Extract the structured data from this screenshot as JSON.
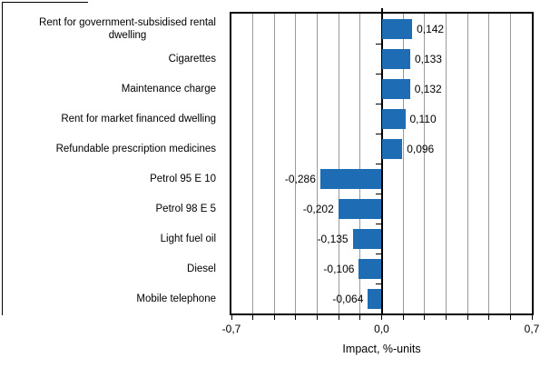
{
  "figure": {
    "axis_title": "Impact, %-units",
    "bar_color": "#1E6CB4",
    "gridline_color": "#9A9A9A",
    "axis_color": "#000000"
  },
  "chart_data": {
    "type": "bar",
    "orientation": "horizontal",
    "title": "",
    "xlabel": "Impact, %-units",
    "ylabel": "",
    "xlim": [
      -0.7,
      0.7
    ],
    "gridline_interval": 0.1,
    "grid": true,
    "legend": false,
    "categories": [
      "Rent for government-subsidised rental\ndwelling",
      "Cigarettes",
      "Maintenance charge",
      "Rent for market financed dwelling",
      "Refundable prescription medicines",
      "Petrol 95 E 10",
      "Petrol 98 E 5",
      "Light fuel oil",
      "Diesel",
      "Mobile telephone"
    ],
    "values": [
      0.142,
      0.133,
      0.132,
      0.11,
      0.096,
      -0.286,
      -0.202,
      -0.135,
      -0.106,
      -0.064
    ],
    "value_labels": [
      "0,142",
      "0,133",
      "0,132",
      "0,110",
      "0,096",
      "-0,286",
      "-0,202",
      "-0,135",
      "-0,106",
      "-0,064"
    ],
    "x_ticks": [
      {
        "label": "-0,7",
        "value": -0.7
      },
      {
        "label": "0,0",
        "value": 0.0
      },
      {
        "label": "0,7",
        "value": 0.7
      }
    ]
  }
}
